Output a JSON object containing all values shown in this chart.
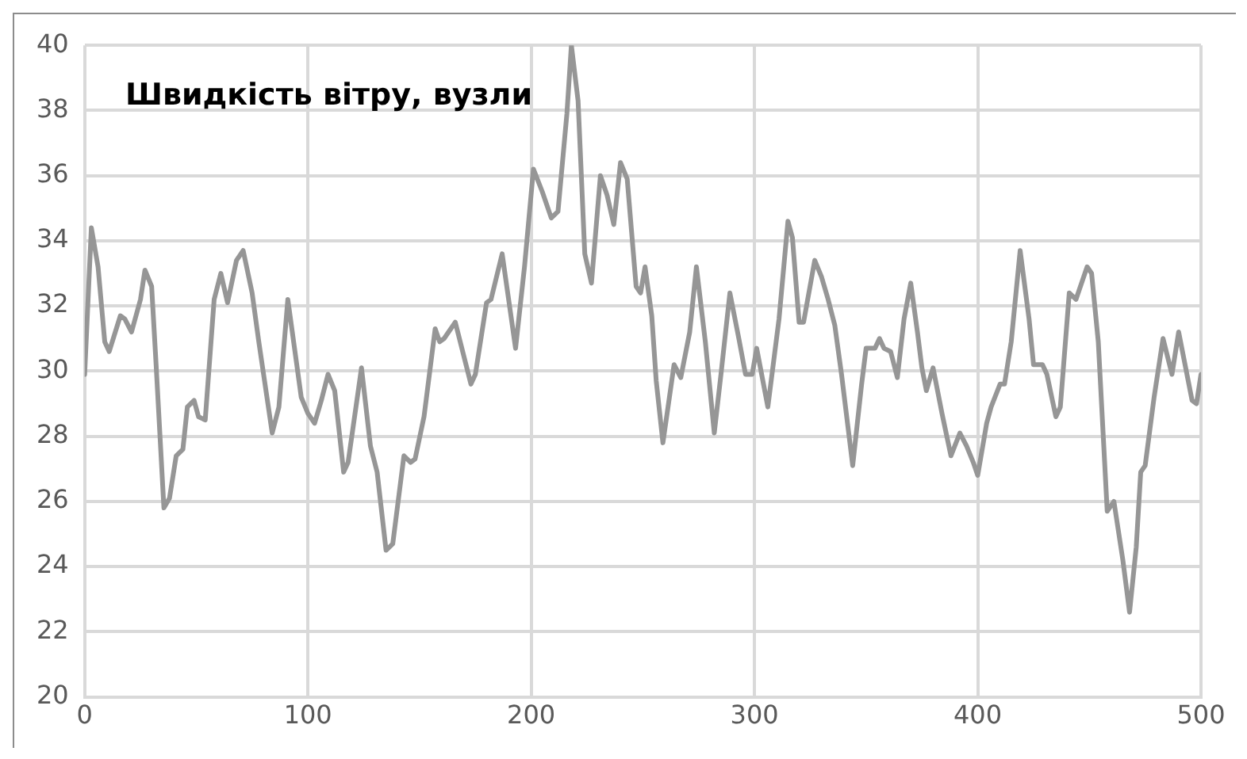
{
  "chart_data": {
    "type": "line",
    "title": "Швидкість вітру, вузли",
    "x": [
      0,
      3,
      6,
      9,
      11,
      16,
      18,
      21,
      25,
      27,
      30,
      32,
      35.5,
      38,
      41,
      44,
      46,
      49,
      51,
      54,
      58,
      61,
      64,
      68,
      71,
      75,
      78,
      84,
      87,
      91,
      97,
      100,
      103,
      106,
      109,
      112,
      116,
      118,
      124,
      128,
      131,
      135,
      138,
      143,
      146,
      148,
      152,
      157,
      159,
      161,
      166,
      173,
      175,
      180,
      182,
      187,
      193,
      197,
      201,
      205,
      206,
      209,
      212,
      216,
      218,
      221,
      224,
      227,
      231,
      234,
      237,
      240,
      243,
      247,
      249,
      251,
      254,
      256,
      259,
      264,
      267,
      271,
      274,
      278,
      282,
      285,
      289,
      293,
      296,
      299,
      301,
      306,
      311,
      315,
      317,
      320,
      322,
      327,
      330,
      333,
      336,
      339,
      344,
      348,
      350,
      354,
      356,
      358,
      361,
      364,
      367,
      370,
      373,
      375,
      377,
      380,
      384,
      388,
      392,
      395,
      398,
      400,
      404,
      406,
      410,
      412,
      415,
      419,
      423,
      425,
      429,
      431,
      435,
      437,
      441,
      444,
      449,
      451,
      454,
      458,
      461,
      465,
      468,
      471,
      473,
      475,
      479,
      483,
      487,
      490,
      496,
      498,
      500
    ],
    "series": [
      {
        "color": "#969696",
        "values": [
          29.9,
          34.4,
          33.2,
          30.9,
          30.6,
          31.7,
          31.6,
          31.2,
          32.2,
          33.1,
          32.6,
          30.2,
          25.8,
          26.1,
          27.4,
          27.6,
          28.9,
          29.1,
          28.6,
          28.5,
          32.2,
          33,
          32.1,
          33.4,
          33.7,
          32.4,
          30.9,
          28.1,
          28.9,
          32.2,
          29.2,
          28.7,
          28.4,
          29.1,
          29.9,
          29.4,
          26.9,
          27.2,
          30.1,
          27.7,
          26.9,
          24.5,
          24.7,
          27.4,
          27.2,
          27.3,
          28.6,
          31.3,
          30.9,
          31,
          31.5,
          29.6,
          29.9,
          32.1,
          32.2,
          33.6,
          30.7,
          33.2,
          36.2,
          35.5,
          35.3,
          34.7,
          34.9,
          37.9,
          40,
          38.3,
          33.6,
          32.7,
          36,
          35.4,
          34.5,
          36.4,
          35.9,
          32.6,
          32.4,
          33.2,
          31.7,
          29.7,
          27.8,
          30.2,
          29.8,
          31.2,
          33.2,
          30.9,
          28.1,
          29.9,
          32.4,
          31,
          29.9,
          29.9,
          30.7,
          28.9,
          31.6,
          34.6,
          34.1,
          31.5,
          31.5,
          33.4,
          32.9,
          32.2,
          31.4,
          29.9,
          27.1,
          29.6,
          30.7,
          30.7,
          31,
          30.7,
          30.6,
          29.8,
          31.6,
          32.7,
          31.2,
          30.1,
          29.4,
          30.1,
          28.7,
          27.4,
          28.1,
          27.7,
          27.2,
          26.8,
          28.4,
          28.9,
          29.6,
          29.6,
          30.9,
          33.7,
          31.6,
          30.2,
          30.2,
          29.9,
          28.6,
          28.9,
          32.4,
          32.2,
          33.2,
          33,
          30.9,
          25.7,
          26,
          24.2,
          22.6,
          24.6,
          26.9,
          27.1,
          29.2,
          31,
          29.9,
          31.2,
          29.1,
          29,
          29.9
        ]
      }
    ],
    "xlim": [
      0,
      500
    ],
    "xticks": [
      0,
      100,
      200,
      300,
      400,
      500
    ],
    "ylim": [
      20,
      40
    ],
    "yticks": [
      20,
      22,
      24,
      26,
      28,
      30,
      32,
      34,
      36,
      38,
      40
    ],
    "grid": true,
    "legend": false,
    "marker": "none",
    "line_style": "solid"
  }
}
